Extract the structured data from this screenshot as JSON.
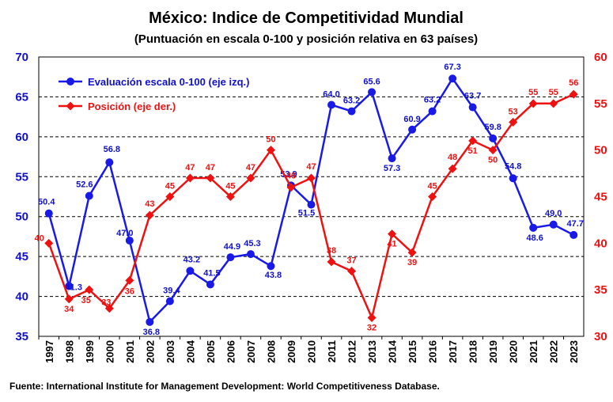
{
  "chart_data": {
    "type": "line",
    "title": "México: Indice de Competitividad Mundial",
    "subtitle": "(Puntuación en escala 0-100 y posición relativa en 63 países)",
    "source": "Fuente: International Institute for Management Development: World Competitiveness Database.",
    "x": [
      "1997",
      "1998",
      "1999",
      "2000",
      "2001",
      "2002",
      "2003",
      "2004",
      "2005",
      "2006",
      "2007",
      "2008",
      "2009",
      "2010",
      "2011",
      "2012",
      "2013",
      "2014",
      "2015",
      "2016",
      "2017",
      "2018",
      "2019",
      "2020",
      "2021",
      "2022",
      "2023"
    ],
    "left_axis": {
      "ylim": [
        35,
        70
      ],
      "ticks": [
        "35",
        "40",
        "45",
        "50",
        "55",
        "60",
        "65",
        "70"
      ]
    },
    "right_axis": {
      "ylim": [
        30,
        60
      ],
      "ticks": [
        "30",
        "35",
        "40",
        "45",
        "50",
        "55",
        "60"
      ]
    },
    "grid": "dashed horizontal",
    "legend_position": "top-left",
    "series": [
      {
        "name": "Evaluación escala 0-100 (eje izq.)",
        "axis": "left",
        "color": "#1a1ae6",
        "marker": "circle",
        "values": [
          50.4,
          41.3,
          52.6,
          56.8,
          47.0,
          36.8,
          39.4,
          43.2,
          41.5,
          44.9,
          45.3,
          43.8,
          53.9,
          51.5,
          64.0,
          63.2,
          65.6,
          57.3,
          60.9,
          63.2,
          67.3,
          63.7,
          59.8,
          54.8,
          48.6,
          49.0,
          47.7
        ],
        "labels": [
          "50.4",
          "41.3",
          "52.6",
          "56.8",
          "47.0",
          "36.8",
          "39.4",
          "43.2",
          "41.5",
          "44.9",
          "45.3",
          "43.8",
          "53.9",
          "51.5",
          "64.0",
          "63.2",
          "65.6",
          "57.3",
          "60.9",
          "63.2",
          "67.3",
          "63.7",
          "59.8",
          "54.8",
          "48.6",
          "49.0",
          "47.7"
        ]
      },
      {
        "name": "Posición (eje der.)",
        "axis": "right",
        "color": "#ee1111",
        "marker": "diamond",
        "values": [
          40,
          34,
          35,
          33,
          36,
          43,
          45,
          47,
          47,
          45,
          47,
          50,
          46,
          47,
          38,
          37,
          32,
          41,
          39,
          45,
          48,
          51,
          50,
          53,
          55,
          55,
          56
        ],
        "labels": [
          "40",
          "34",
          "35",
          "33",
          "36",
          "43",
          "45",
          "47",
          "47",
          "45",
          "47",
          "50",
          "46",
          "47",
          "38",
          "37",
          "32",
          "41",
          "39",
          "45",
          "48",
          "51",
          "50",
          "53",
          "55",
          "55",
          "56"
        ]
      }
    ]
  }
}
